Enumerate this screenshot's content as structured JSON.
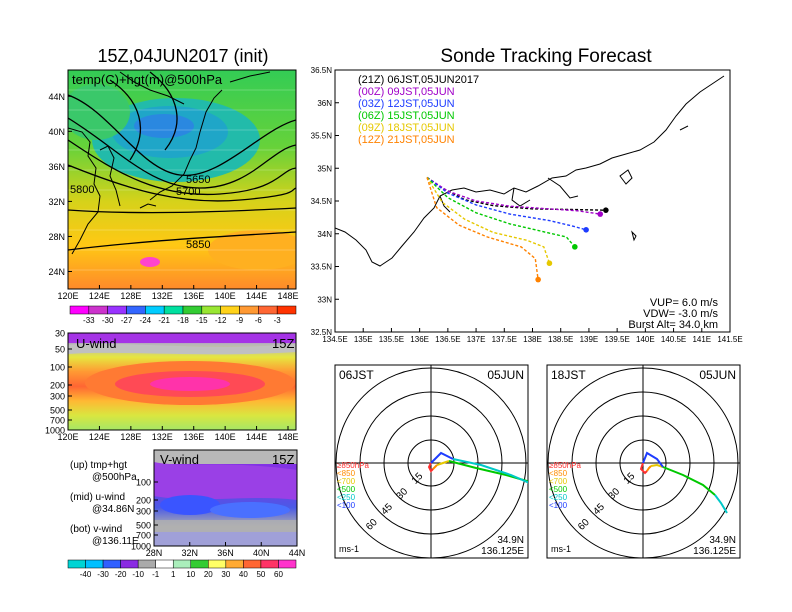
{
  "header": {
    "left_title": "15Z,04JUN2017 (init)",
    "right_title": "Sonde Tracking Forecast"
  },
  "colors": {
    "temp_scale": [
      "#ff00ff",
      "#cc33cc",
      "#9933ff",
      "#3366ff",
      "#00ccff",
      "#00e0a0",
      "#33cc33",
      "#99e633",
      "#ffd21a",
      "#ff9933",
      "#ff6633",
      "#ff3300"
    ],
    "wind_scale": [
      "#00d4d4",
      "#00c0ff",
      "#3060ff",
      "#8a2be2",
      "#aaaaaa",
      "#ffffff",
      "#aaeebb",
      "#33cc33",
      "#ffff66",
      "#ffaa33",
      "#ff6633",
      "#ff3366",
      "#ff33cc"
    ],
    "track_21z": "#000000",
    "track_00z": "#a000c8",
    "track_03z": "#1e3cff",
    "track_06z": "#00c800",
    "track_09z": "#e6c800",
    "track_12z": "#ff8200"
  },
  "chart_data": [
    {
      "type": "heatmap",
      "name": "map",
      "title": "15Z,04JUN2017 (init)",
      "label": "temp(C)+hgt(m)@500hPa",
      "x_ticks": [
        "120E",
        "124E",
        "128E",
        "132E",
        "136E",
        "140E",
        "144E",
        "148E"
      ],
      "y_ticks": [
        "24N",
        "28N",
        "32N",
        "36N",
        "40N",
        "44N"
      ],
      "xlim": [
        120,
        150
      ],
      "ylim": [
        22,
        47
      ],
      "contours": [
        {
          "label": "5650",
          "level": 5650
        },
        {
          "label": "5700",
          "level": 5700
        },
        {
          "label": "5800",
          "level": 5800
        },
        {
          "label": "5850",
          "level": 5850
        }
      ],
      "colorbar_ticks": [
        "-33",
        "-30",
        "-27",
        "-24",
        "-21",
        "-18",
        "-15",
        "-12",
        "-9",
        "-6",
        "-3"
      ]
    },
    {
      "type": "heatmap",
      "name": "u-wind",
      "label": "U-wind",
      "time": "15Z",
      "x_ticks": [
        "120E",
        "124E",
        "128E",
        "132E",
        "136E",
        "140E",
        "144E",
        "148E"
      ],
      "y_ticks": [
        "30",
        "50",
        "100",
        "200",
        "300",
        "500",
        "700",
        "1000"
      ]
    },
    {
      "type": "heatmap",
      "name": "v-wind",
      "label": "V-wind",
      "time": "15Z",
      "x_ticks": [
        "28N",
        "32N",
        "36N",
        "40N",
        "44N"
      ],
      "y_ticks": [
        "100",
        "200",
        "300",
        "500",
        "700",
        "1000"
      ],
      "colorbar_ticks": [
        "-40",
        "-30",
        "-20",
        "-10",
        "-1",
        "1",
        "10",
        "20",
        "30",
        "40",
        "50",
        "60"
      ]
    },
    {
      "type": "line",
      "name": "sonde-tracks",
      "title": "Sonde Tracking Forecast",
      "x_ticks": [
        "134.5E",
        "135E",
        "135.5E",
        "136E",
        "136.5E",
        "137E",
        "137.5E",
        "138E",
        "138.5E",
        "139E",
        "139.5E",
        "140E",
        "140.5E",
        "141E",
        "141.5E"
      ],
      "y_ticks": [
        "32.5N",
        "33N",
        "33.5N",
        "34N",
        "34.5N",
        "35N",
        "35.5N",
        "36N",
        "36.5N"
      ],
      "xlim": [
        134.5,
        141.5
      ],
      "ylim": [
        32.5,
        36.5
      ],
      "series": [
        {
          "name": "(21Z)  06JST,05JUN2017",
          "color": "#000000",
          "x": [
            136.13,
            136.4,
            136.8,
            137.3,
            138.0,
            138.7,
            139.3
          ],
          "y": [
            34.86,
            34.7,
            34.52,
            34.43,
            34.38,
            34.37,
            34.36
          ]
        },
        {
          "name": "(00Z)  09JST,05JUN",
          "color": "#a000c8",
          "x": [
            136.13,
            136.5,
            137.0,
            137.6,
            138.3,
            138.8,
            139.2
          ],
          "y": [
            34.86,
            34.65,
            34.5,
            34.42,
            34.38,
            34.35,
            34.3
          ]
        },
        {
          "name": "(03Z)  12JST,05JUN",
          "color": "#1e3cff",
          "x": [
            136.13,
            136.5,
            137.0,
            137.6,
            138.3,
            138.7,
            138.95
          ],
          "y": [
            34.86,
            34.62,
            34.44,
            34.3,
            34.2,
            34.12,
            34.06
          ]
        },
        {
          "name": "(06Z)  15JST,05JUN",
          "color": "#00c800",
          "x": [
            136.13,
            136.5,
            137.0,
            137.6,
            138.2,
            138.6,
            138.75
          ],
          "y": [
            34.86,
            34.55,
            34.32,
            34.15,
            34.03,
            33.95,
            33.8
          ]
        },
        {
          "name": "(09Z)  18JST,05JUN",
          "color": "#e6c800",
          "x": [
            136.13,
            136.4,
            136.8,
            137.3,
            137.9,
            138.2,
            138.3
          ],
          "y": [
            34.86,
            34.48,
            34.22,
            34.02,
            33.9,
            33.8,
            33.55
          ]
        },
        {
          "name": "(12Z)  21JST,05JUN",
          "color": "#ff8200",
          "x": [
            136.13,
            136.3,
            136.7,
            137.2,
            137.8,
            138.05,
            138.1
          ],
          "y": [
            34.86,
            34.4,
            34.13,
            33.95,
            33.8,
            33.62,
            33.3
          ]
        }
      ],
      "info": {
        "vup": "VUP=  6.0 m/s",
        "vdw": "VDW= -3.0 m/s",
        "burst": "Burst Alt= 34.0 km"
      }
    },
    {
      "type": "line",
      "name": "hodograph-06",
      "time_left": "06JST",
      "time_right": "05JUN",
      "ring_labels": [
        "15",
        "30",
        "45",
        "60"
      ],
      "legend": [
        {
          "label": "≥850hPa",
          "color": "#ff3030"
        },
        {
          "label": "<850",
          "color": "#ff8c00"
        },
        {
          "label": "<700",
          "color": "#e6c800"
        },
        {
          "label": "<500",
          "color": "#00c800"
        },
        {
          "label": "<250",
          "color": "#00c8c8"
        },
        {
          "label": "<100",
          "color": "#1e3cff"
        }
      ],
      "unit": "ms-1",
      "location_lat": "34.9N",
      "location_lon": "136.125E"
    },
    {
      "type": "line",
      "name": "hodograph-18",
      "time_left": "18JST",
      "time_right": "05JUN",
      "ring_labels": [
        "15",
        "30",
        "45",
        "60"
      ],
      "legend": [
        {
          "label": "≥850hPa",
          "color": "#ff3030"
        },
        {
          "label": "<850",
          "color": "#ff8c00"
        },
        {
          "label": "<700",
          "color": "#e6c800"
        },
        {
          "label": "<500",
          "color": "#00c800"
        },
        {
          "label": "<250",
          "color": "#00c8c8"
        },
        {
          "label": "<100",
          "color": "#1e3cff"
        }
      ],
      "unit": "ms-1",
      "location_lat": "34.9N",
      "location_lon": "136.125E"
    }
  ],
  "side_labels": {
    "up_1": "(up) tmp+hgt",
    "up_2": "@500hPa",
    "mid_1": "(mid) u-wind",
    "mid_2": "@34.86N",
    "bot_1": "(bot) v-wind",
    "bot_2": "@136.11E"
  }
}
